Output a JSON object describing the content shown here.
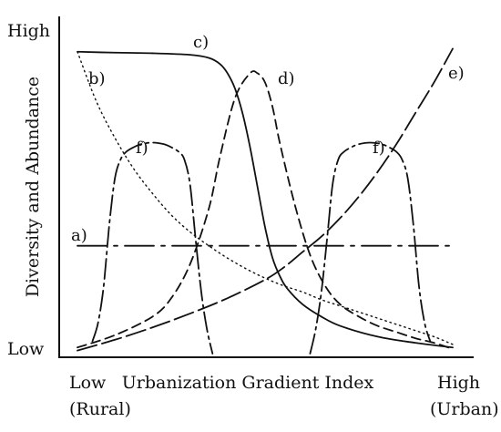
{
  "chart_data": {
    "type": "line",
    "ylabel": "Diversity and Abundance",
    "xlabel": "Urbanization Gradient Index",
    "y_ticks": [
      "High",
      "Low"
    ],
    "x_ticks": [
      {
        "line1": "Low",
        "line2": "(Rural)"
      },
      {
        "line1": "High",
        "line2": "(Urban)"
      }
    ],
    "xlim": [
      0,
      100
    ],
    "ylim": [
      0,
      100
    ],
    "grid": false,
    "series": [
      {
        "name": "a)",
        "dash": "32,8,4,8",
        "x": [
          0,
          100
        ],
        "y": [
          35,
          35
        ]
      },
      {
        "name": "b)",
        "dash": "1.5,4",
        "x": [
          0,
          5,
          10,
          15,
          20,
          25,
          30,
          35,
          40,
          45,
          50,
          55,
          60,
          65,
          70,
          75,
          80,
          85,
          90,
          95,
          100
        ],
        "y": [
          98,
          82,
          70,
          60,
          52,
          45,
          39.5,
          35,
          31,
          27.5,
          24.5,
          22,
          20,
          17.5,
          15.5,
          13.5,
          11.5,
          9.5,
          7.5,
          5.5,
          3
        ]
      },
      {
        "name": "c)",
        "dash": "",
        "x": [
          0,
          10,
          20,
          30,
          35,
          38,
          40,
          42,
          44,
          46,
          48,
          50,
          52,
          54,
          56,
          60,
          65,
          70,
          80,
          90,
          100
        ],
        "y": [
          98,
          97.7,
          97.5,
          97,
          96,
          94,
          91,
          86,
          78,
          67,
          54,
          41,
          31,
          25,
          21,
          16,
          12,
          9,
          5.5,
          3.5,
          2
        ]
      },
      {
        "name": "d)",
        "dash": "10,6",
        "x": [
          0,
          10,
          20,
          25,
          30,
          35,
          38,
          42,
          46,
          48,
          50,
          52,
          54,
          58,
          62,
          66,
          70,
          75,
          80,
          85,
          90,
          95,
          100
        ],
        "y": [
          2,
          6,
          12,
          18,
          29,
          47,
          64,
          83,
          91,
          91,
          88,
          80,
          68,
          48,
          32,
          22,
          16,
          12,
          9,
          7,
          5,
          3.5,
          1.5
        ]
      },
      {
        "name": "e)",
        "dash": "22,6",
        "x": [
          0,
          10,
          20,
          30,
          40,
          50,
          55,
          60,
          65,
          70,
          75,
          80,
          85,
          90,
          95,
          100
        ],
        "y": [
          1,
          4.5,
          8.5,
          13,
          18,
          24,
          28,
          33,
          38,
          44,
          51,
          59,
          68,
          78,
          88,
          99
        ]
      },
      {
        "name": "f)",
        "dash": "22,5,3,5",
        "x": [
          4,
          5.5,
          7,
          8.5,
          10,
          11.5,
          13,
          15,
          17,
          20,
          23,
          25,
          27,
          28.5,
          30,
          31.5,
          33,
          34.5,
          36
        ],
        "y": [
          4,
          10,
          22,
          42,
          57,
          63,
          65.5,
          67,
          68,
          68.5,
          68,
          67,
          65.5,
          63,
          55,
          37,
          20,
          8,
          0
        ]
      },
      {
        "name": "f)",
        "dash": "22,5,3,5",
        "x": [
          62,
          63.5,
          65,
          66.5,
          68,
          69.5,
          71,
          73,
          75,
          78,
          81,
          83,
          85,
          86.5,
          88,
          89.5,
          91,
          92.5,
          94
        ],
        "y": [
          0,
          8,
          20,
          37,
          55,
          63,
          65.5,
          67,
          68,
          68.5,
          68,
          67,
          65.5,
          63,
          57,
          42,
          22,
          10,
          4
        ]
      }
    ]
  }
}
